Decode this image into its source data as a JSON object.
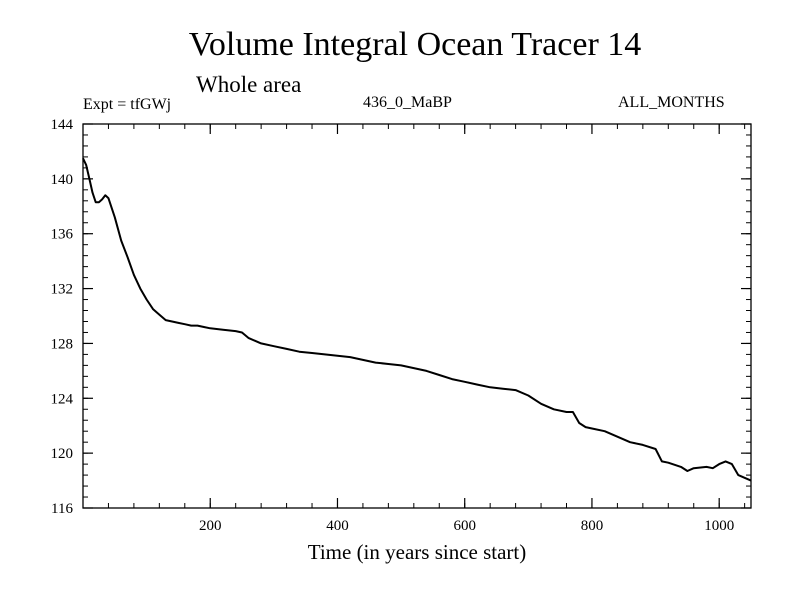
{
  "header": {
    "title": "Volume Integral Ocean Tracer 14",
    "subtitle": "Whole area",
    "expt": "Expt = tfGWj",
    "run": "436_0_MaBP",
    "months": "ALL_MONTHS"
  },
  "chart_data": {
    "type": "line",
    "title": "Volume Integral Ocean Tracer 14",
    "xlabel": "Time (in years since start)",
    "ylabel": "",
    "xlim": [
      0,
      1050
    ],
    "ylim": [
      116,
      144
    ],
    "xticks": [
      200,
      400,
      600,
      800,
      1000
    ],
    "yticks": [
      116,
      120,
      124,
      128,
      132,
      136,
      140,
      144
    ],
    "grid": false,
    "series": [
      {
        "color": "#000000",
        "x": [
          0,
          5,
          10,
          15,
          20,
          25,
          30,
          35,
          40,
          50,
          60,
          70,
          80,
          90,
          100,
          110,
          120,
          130,
          140,
          150,
          160,
          170,
          180,
          190,
          200,
          220,
          240,
          250,
          260,
          270,
          280,
          300,
          320,
          340,
          360,
          380,
          400,
          420,
          440,
          460,
          480,
          500,
          520,
          540,
          560,
          580,
          600,
          620,
          640,
          660,
          680,
          700,
          720,
          740,
          760,
          770,
          780,
          790,
          800,
          820,
          840,
          860,
          880,
          900,
          910,
          920,
          940,
          950,
          960,
          980,
          990,
          1000,
          1010,
          1020,
          1030,
          1040,
          1050
        ],
        "y": [
          141.5,
          141.0,
          140.0,
          139.0,
          138.3,
          138.3,
          138.5,
          138.8,
          138.6,
          137.2,
          135.5,
          134.3,
          133.0,
          132.0,
          131.2,
          130.5,
          130.1,
          129.7,
          129.6,
          129.5,
          129.4,
          129.3,
          129.3,
          129.2,
          129.1,
          129.0,
          128.9,
          128.8,
          128.4,
          128.2,
          128.0,
          127.8,
          127.6,
          127.4,
          127.3,
          127.2,
          127.1,
          127.0,
          126.8,
          126.6,
          126.5,
          126.4,
          126.2,
          126.0,
          125.7,
          125.4,
          125.2,
          125.0,
          124.8,
          124.7,
          124.6,
          124.2,
          123.6,
          123.2,
          123.0,
          123.0,
          122.2,
          121.9,
          121.8,
          121.6,
          121.2,
          120.8,
          120.6,
          120.3,
          119.4,
          119.3,
          119.0,
          118.7,
          118.9,
          119.0,
          118.9,
          119.2,
          119.4,
          119.2,
          118.4,
          118.2,
          118.0
        ]
      }
    ]
  }
}
